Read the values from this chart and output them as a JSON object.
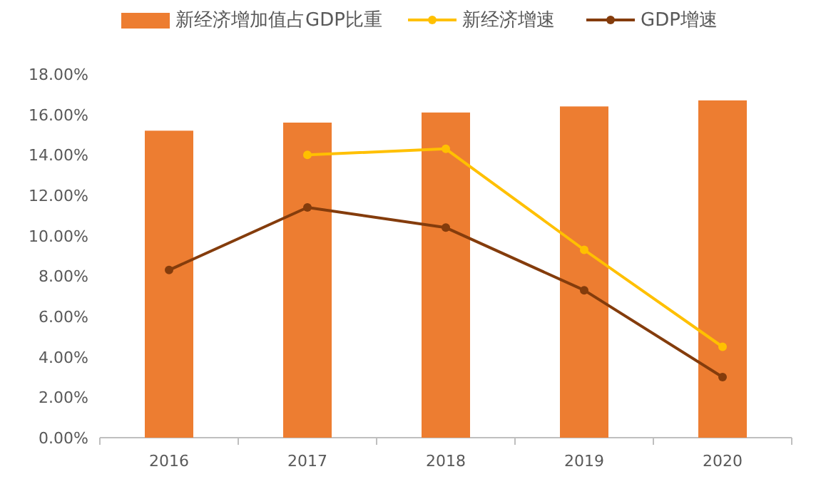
{
  "chart_data": {
    "type": "bar",
    "categories": [
      "2016",
      "2017",
      "2018",
      "2019",
      "2020"
    ],
    "series": [
      {
        "name": "新经济增加值占GDP比重",
        "color": "#ed7d31",
        "values": [
          15.2,
          15.6,
          16.1,
          16.4,
          16.7
        ]
      },
      {
        "name": "新经济增速",
        "color": "#ffc000",
        "type": "line",
        "values": [
          null,
          14.0,
          14.3,
          9.3,
          4.5
        ]
      },
      {
        "name": "GDP增速",
        "color": "#843c0c",
        "type": "line",
        "values": [
          8.3,
          11.4,
          10.4,
          7.3,
          3.0
        ]
      }
    ],
    "ylim": [
      0,
      18
    ],
    "yticks": [
      {
        "value": 0,
        "label": "0.00%"
      },
      {
        "value": 2,
        "label": "2.00%"
      },
      {
        "value": 4,
        "label": "4.00%"
      },
      {
        "value": 6,
        "label": "6.00%"
      },
      {
        "value": 8,
        "label": "8.00%"
      },
      {
        "value": 10,
        "label": "10.00%"
      },
      {
        "value": 12,
        "label": "12.00%"
      },
      {
        "value": 14,
        "label": "14.00%"
      },
      {
        "value": 16,
        "label": "16.00%"
      },
      {
        "value": 18,
        "label": "18.00%"
      }
    ],
    "grid": false,
    "legend": "top",
    "marker": "circle",
    "line_style": "solid"
  }
}
